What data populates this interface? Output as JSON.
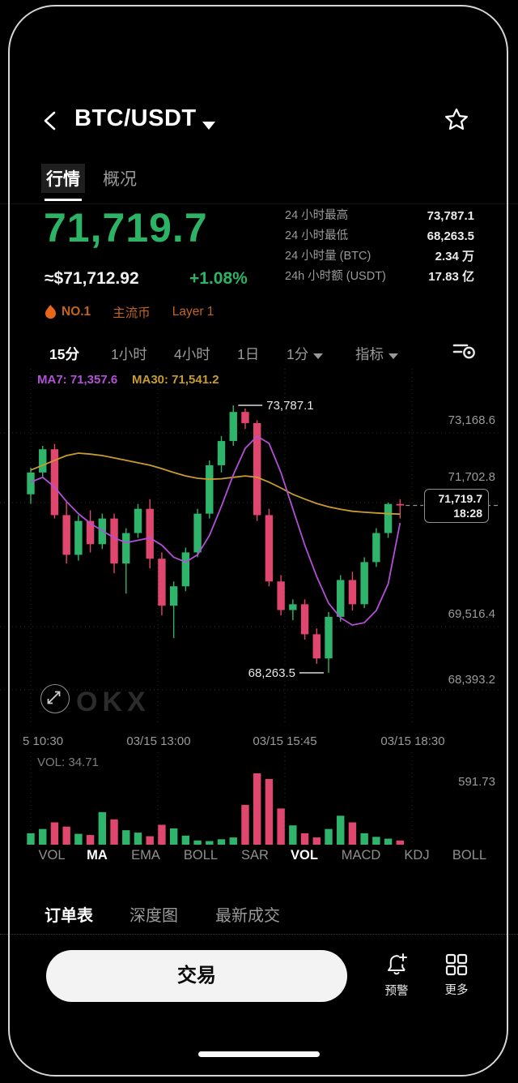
{
  "header": {
    "title": "BTC/USDT"
  },
  "tabs": [
    {
      "label": "行情",
      "active": true
    },
    {
      "label": "概况",
      "active": false
    }
  ],
  "price": {
    "last": "71,719.7",
    "fiat": "≈$71,712.92",
    "change": "+1.08%"
  },
  "stats": [
    {
      "label": "24 小时最高",
      "value": "73,787.1"
    },
    {
      "label": "24 小时最低",
      "value": "68,263.5"
    },
    {
      "label": "24 小时量 (BTC)",
      "value": "2.34 万"
    },
    {
      "label": "24h 小时额 (USDT)",
      "value": "17.83 亿"
    }
  ],
  "badges": {
    "rank": "NO.1",
    "tag1": "主流币",
    "tag2": "Layer 1"
  },
  "timeframes": [
    {
      "label": "15分",
      "active": true
    },
    {
      "label": "1小时",
      "active": false
    },
    {
      "label": "4小时",
      "active": false
    },
    {
      "label": "1日",
      "active": false
    },
    {
      "label": "1分",
      "active": false,
      "caret": true
    },
    {
      "label": "指标",
      "active": false,
      "caret": true
    }
  ],
  "chart": {
    "ma7_label": "MA7: 71,357.6",
    "ma30_label": "MA30: 71,541.2",
    "price_tag": {
      "price": "71,719.7",
      "time": "18:28"
    },
    "watermark": "OKX",
    "x_ticks": [
      "5 10:30",
      "03/15 13:00",
      "03/15 15:45",
      "03/15 18:30"
    ]
  },
  "volume_pane": {
    "label": "VOL: 34.71",
    "max_label": "591.73"
  },
  "indicators": [
    {
      "label": "VOL",
      "active": false
    },
    {
      "label": "MA",
      "active": true
    },
    {
      "label": "EMA",
      "active": false
    },
    {
      "label": "BOLL",
      "active": false
    },
    {
      "label": "SAR",
      "active": false
    },
    {
      "label": "VOL",
      "active": true
    },
    {
      "label": "MACD",
      "active": false
    },
    {
      "label": "KDJ",
      "active": false
    },
    {
      "label": "BOLL",
      "active": false
    }
  ],
  "bottom_tabs": [
    {
      "label": "订单表",
      "active": true
    },
    {
      "label": "深度图",
      "active": false
    },
    {
      "label": "最新成交",
      "active": false
    }
  ],
  "actions": {
    "trade": "交易",
    "alert": "预警",
    "more": "更多"
  },
  "colors": {
    "up": "#2fb46b",
    "down": "#e0476e",
    "price_green": "#2db365",
    "orange": "#c2641f",
    "flame": "#e8681a",
    "ma7": "#b44fd8",
    "ma30": "#c99b2e",
    "grid": "#262a36",
    "axis_text": "#9a9a9a"
  },
  "chart_data": {
    "type": "candlestick",
    "interval": "15m",
    "x": [
      "10:30",
      "10:45",
      "11:00",
      "11:15",
      "11:30",
      "11:45",
      "12:00",
      "12:15",
      "12:30",
      "12:45",
      "13:00",
      "13:15",
      "13:30",
      "13:45",
      "14:00",
      "14:15",
      "14:30",
      "14:45",
      "15:00",
      "15:15",
      "15:30",
      "15:45",
      "16:00",
      "16:15",
      "16:30",
      "16:45",
      "17:00",
      "17:15",
      "17:30",
      "17:45",
      "18:00",
      "18:15"
    ],
    "x_axis_labels": [
      "5 10:30",
      "03/15 13:00",
      "03/15 15:45",
      "03/15 18:30"
    ],
    "candles": [
      [
        71950,
        72500,
        71750,
        72400
      ],
      [
        72400,
        72950,
        72300,
        72880
      ],
      [
        72880,
        72990,
        71450,
        71520
      ],
      [
        71520,
        71820,
        70520,
        70700
      ],
      [
        70700,
        71520,
        70580,
        71400
      ],
      [
        71400,
        71620,
        70750,
        70920
      ],
      [
        70920,
        71550,
        70820,
        71450
      ],
      [
        71450,
        71550,
        70320,
        70520
      ],
      [
        70520,
        71250,
        69900,
        71150
      ],
      [
        71150,
        71750,
        71050,
        71650
      ],
      [
        71650,
        71850,
        70420,
        70620
      ],
      [
        70620,
        70750,
        69450,
        69650
      ],
      [
        69650,
        70150,
        68980,
        70050
      ],
      [
        70050,
        70850,
        69950,
        70750
      ],
      [
        70750,
        71650,
        70650,
        71550
      ],
      [
        71550,
        72650,
        71450,
        72550
      ],
      [
        72550,
        73150,
        72400,
        73050
      ],
      [
        73050,
        73787.1,
        72950,
        73650
      ],
      [
        73650,
        73720,
        73300,
        73420
      ],
      [
        73420,
        73480,
        71400,
        71520
      ],
      [
        71520,
        71650,
        70050,
        70150
      ],
      [
        70150,
        70280,
        69450,
        69560
      ],
      [
        69560,
        69780,
        69350,
        69680
      ],
      [
        69680,
        69780,
        68950,
        69060
      ],
      [
        69060,
        69180,
        68450,
        68560
      ],
      [
        68560,
        69520,
        68263.5,
        69420
      ],
      [
        69420,
        70280,
        69320,
        70180
      ],
      [
        70180,
        70350,
        69550,
        69680
      ],
      [
        69680,
        70650,
        69600,
        70550
      ],
      [
        70550,
        71250,
        70450,
        71150
      ],
      [
        71150,
        71780,
        71050,
        71750
      ],
      [
        71750,
        71850,
        71450,
        71719.7
      ]
    ],
    "volumes": [
      95,
      130,
      185,
      150,
      90,
      80,
      270,
      210,
      120,
      100,
      70,
      165,
      135,
      75,
      35,
      30,
      45,
      60,
      330,
      591.73,
      545,
      300,
      160,
      95,
      60,
      130,
      240,
      185,
      95,
      65,
      50,
      34.71
    ],
    "volume_max": 591.73,
    "current_volume": 34.71,
    "ma7": [
      72200,
      72300,
      72100,
      71800,
      71550,
      71350,
      71200,
      71050,
      70950,
      71000,
      71050,
      70900,
      70650,
      70550,
      70700,
      71100,
      71700,
      72350,
      72900,
      73150,
      73000,
      72400,
      71650,
      70900,
      70250,
      69700,
      69400,
      69250,
      69300,
      69550,
      70100,
      71357.6
    ],
    "ma30": [
      72450,
      72550,
      72650,
      72750,
      72800,
      72780,
      72750,
      72700,
      72650,
      72600,
      72550,
      72480,
      72400,
      72330,
      72280,
      72260,
      72270,
      72300,
      72330,
      72300,
      72200,
      72080,
      71950,
      71850,
      71760,
      71690,
      71640,
      71600,
      71580,
      71565,
      71550,
      71541.2
    ],
    "high": 73787.1,
    "low": 68263.5,
    "last_close": 71719.7,
    "last_time": "18:28",
    "y_axis_ticks": [
      73168.6,
      71702.8,
      69516.4,
      68393.2
    ]
  }
}
